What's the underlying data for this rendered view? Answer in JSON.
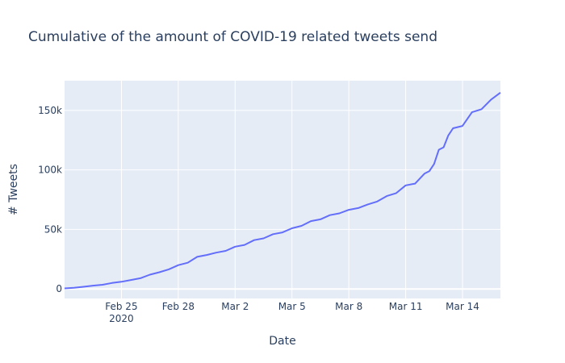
{
  "chart_data": {
    "type": "line",
    "title": "Cumulative of the amount of COVID-19 related tweets send",
    "xlabel": "Date",
    "ylabel": "# Tweets",
    "x_range": [
      "2020-02-22",
      "2020-03-16"
    ],
    "ylim": [
      -8000,
      175000
    ],
    "x_ticks": [
      {
        "date": "2020-02-25",
        "label": "Feb 25",
        "sublabel": "2020"
      },
      {
        "date": "2020-02-28",
        "label": "Feb 28",
        "sublabel": ""
      },
      {
        "date": "2020-03-02",
        "label": "Mar 2",
        "sublabel": ""
      },
      {
        "date": "2020-03-05",
        "label": "Mar 5",
        "sublabel": ""
      },
      {
        "date": "2020-03-08",
        "label": "Mar 8",
        "sublabel": ""
      },
      {
        "date": "2020-03-11",
        "label": "Mar 11",
        "sublabel": ""
      },
      {
        "date": "2020-03-14",
        "label": "Mar 14",
        "sublabel": ""
      }
    ],
    "y_ticks": [
      {
        "value": 0,
        "label": "0"
      },
      {
        "value": 50000,
        "label": "50k"
      },
      {
        "value": 100000,
        "label": "100k"
      },
      {
        "value": 150000,
        "label": "150k"
      }
    ],
    "grid": true,
    "colors": {
      "line": "#636efa",
      "plot_bg": "#e5ecf6",
      "grid": "#ffffff",
      "text": "#2a3f5f"
    },
    "series": [
      {
        "x": [
          "2020-02-22",
          "2020-02-22 12:00",
          "2020-02-23",
          "2020-02-23 12:00",
          "2020-02-24",
          "2020-02-24 12:00",
          "2020-02-25",
          "2020-02-25 12:00",
          "2020-02-26",
          "2020-02-26 12:00",
          "2020-02-27",
          "2020-02-27 12:00",
          "2020-02-28",
          "2020-02-28 12:00",
          "2020-02-29",
          "2020-02-29 12:00",
          "2020-03-01",
          "2020-03-01 12:00",
          "2020-03-02",
          "2020-03-02 12:00",
          "2020-03-03",
          "2020-03-03 12:00",
          "2020-03-04",
          "2020-03-04 12:00",
          "2020-03-05",
          "2020-03-05 12:00",
          "2020-03-06",
          "2020-03-06 12:00",
          "2020-03-07",
          "2020-03-07 12:00",
          "2020-03-08",
          "2020-03-08 12:00",
          "2020-03-09",
          "2020-03-09 12:00",
          "2020-03-10",
          "2020-03-10 12:00",
          "2020-03-11",
          "2020-03-11 12:00",
          "2020-03-12",
          "2020-03-12 06:00",
          "2020-03-12 12:00",
          "2020-03-12 18:00",
          "2020-03-13",
          "2020-03-13 06:00",
          "2020-03-13 12:00",
          "2020-03-14",
          "2020-03-14 12:00",
          "2020-03-15",
          "2020-03-15 12:00",
          "2020-03-16"
        ],
        "y": [
          500,
          1000,
          1800,
          2800,
          3500,
          5000,
          6000,
          7500,
          9000,
          12000,
          14000,
          16500,
          20000,
          22000,
          27000,
          28500,
          30500,
          32000,
          35500,
          37000,
          41000,
          42500,
          46000,
          47500,
          51000,
          53000,
          57000,
          58500,
          62000,
          63500,
          66500,
          68000,
          71000,
          73500,
          78000,
          80500,
          87000,
          88500,
          97000,
          99000,
          105000,
          117000,
          119000,
          129000,
          135000,
          137000,
          148500,
          151000,
          159000,
          165000
        ]
      }
    ]
  }
}
